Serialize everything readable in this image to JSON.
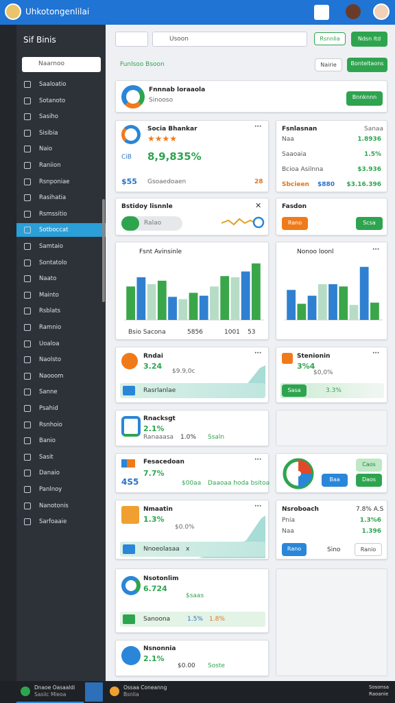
{
  "topbar": {
    "title": "Uhkotongenlilai"
  },
  "sidebar": {
    "title": "Sif Binis",
    "search": "Naarnoo",
    "items": [
      "Saaloatio",
      "Sotanoto",
      "Sasiho",
      "Sisibia",
      "Naio",
      "Raniion",
      "Rsnponiae",
      "Rasihatia",
      "Rsmssitio",
      "Sotboccat",
      "Samtaio",
      "Sontatolo",
      "Naato",
      "Mainto",
      "Rsblats",
      "Ramnio",
      "Uoaloa",
      "Naolsto",
      "Naooom",
      "Sanne",
      "Psahid",
      "Rsnhoio",
      "Banio",
      "Sasit",
      "Danaio",
      "Panlnoy",
      "Nanotonis",
      "Sarfoaaie"
    ],
    "active_index": 9
  },
  "toolbar": {
    "search": "Usoon",
    "buttons": [
      "Rsnnlia",
      "Ndsn ltd"
    ]
  },
  "section": {
    "title": "Funlsoo Bsoon",
    "buttons": [
      "Nairie",
      "Bonteltaons"
    ]
  },
  "banner": {
    "title": "Fnnnab loraaola",
    "subtitle": "Sinooso",
    "button": "Bnnknnn"
  },
  "profile_card": {
    "title": "Socia Bhankar",
    "value": "8,9,835%",
    "code": "CiB",
    "amount": "$55",
    "label": "Gsoaedoaen",
    "count": "28"
  },
  "stats_card": {
    "title": "Fsnlasnan",
    "header_right": "Sanaa",
    "rows": [
      [
        "Naa",
        "1.8936"
      ],
      [
        "Saaoaia",
        "1.5%"
      ],
      [
        "Bcioa Asilnna",
        "$3.936"
      ],
      [
        "Sbcieen",
        "$880",
        "$3.16.396"
      ]
    ]
  },
  "toggle_card": {
    "title": "Bstidoy lisnnle",
    "toggle": "Ralao"
  },
  "action_card": {
    "title": "Fasdon",
    "buttons": [
      "Rano",
      "Scsa"
    ]
  },
  "bar_chart_1": {
    "title": "Fsnt Avinsinle",
    "values": [
      58,
      74,
      62,
      68,
      40,
      36,
      47,
      42,
      58,
      76,
      74,
      84,
      98
    ],
    "colors": [
      "#3aa64a",
      "#2f80d0",
      "#b7dcc6",
      "#3aa64a",
      "#2f80d0",
      "#b7dcc6",
      "#3aa64a",
      "#2f80d0",
      "#b7dcc6",
      "#3aa64a",
      "#b7dcc6",
      "#2f80d0",
      "#3aa64a"
    ],
    "legend": [
      "Bsio Sacona",
      "5856",
      "1001",
      "53"
    ]
  },
  "bar_chart_2": {
    "title": "Nonoo loonl",
    "values": [
      52,
      28,
      42,
      62,
      62,
      58,
      26,
      92,
      30
    ],
    "colors": [
      "#2f80d0",
      "#3aa64a",
      "#2f80d0",
      "#b7dcc6",
      "#2f80d0",
      "#3aa64a",
      "#b7dcc6",
      "#2f80d0",
      "#3aa64a"
    ]
  },
  "rndai_card": {
    "title": "Rndai",
    "value": "3.24",
    "sub": "$9.9,0c",
    "bar_label": "Rasrlanlae"
  },
  "stenionin_card": {
    "title": "Stenionin",
    "value": "3%4",
    "sub": "$0,0%",
    "bar_label": "Sasa",
    "bar_value": "3.3%"
  },
  "rnacksgt_card": {
    "title": "Rnacksgt",
    "value": "2.1%",
    "items": [
      "Ranaaasa",
      "1.0%",
      "Ssaln"
    ]
  },
  "fesacedoan_card": {
    "title": "Fesacedoan",
    "code": "4S5",
    "value": "7.7%",
    "items": [
      "$00aa",
      "Daaoaa hoda bsitoa"
    ]
  },
  "pie_card": {
    "buttons": [
      "Caos",
      "Baa",
      "Daos"
    ]
  },
  "nmaatin_card": {
    "title": "Nmaatin",
    "value": "1.3%",
    "sub": "$0.0%",
    "bar_label": "Nnoeolasaa"
  },
  "nsroboach_card": {
    "title": "Nsroboach",
    "header_right": "7.8% A.S",
    "rows": [
      [
        "Pnia",
        "1.3%6"
      ],
      [
        "Naa",
        "1.396"
      ]
    ],
    "buttons": [
      "Rano",
      "Sino",
      "Ranio"
    ]
  },
  "nsotonlim_card": {
    "title": "Nsotonlim",
    "value": "6.724",
    "sub": "$saas",
    "bar_label": "Sanoona",
    "bar_values": [
      "1.5%",
      "1.8%"
    ]
  },
  "nsnonnia_card": {
    "title": "Nsnonnia",
    "value": "2.1%",
    "items": [
      "$0.00",
      "Soste"
    ]
  },
  "taskbar": {
    "apps": [
      [
        "Dnaoe Oasaaldi",
        "Sasiic Mieoa"
      ],
      [
        "Ossaa Coneanng",
        "Bsnlia"
      ]
    ],
    "clock": [
      "Sosonsa",
      "Raoanie"
    ]
  }
}
